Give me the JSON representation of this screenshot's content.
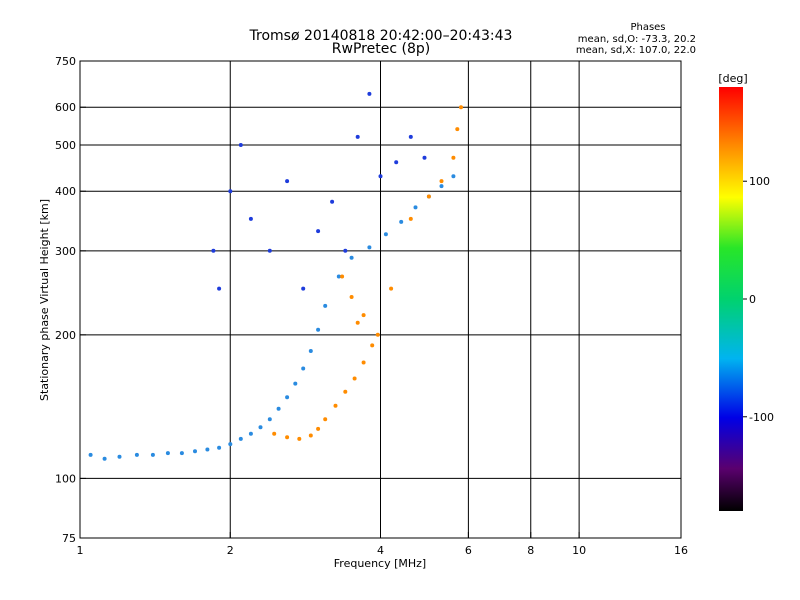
{
  "chart_data": {
    "type": "scatter",
    "title": "Tromsø 20140818 20:42:00–20:43:43",
    "subtitle": "RwPretec (8p)",
    "xlabel": "Frequency [MHz]",
    "ylabel": "Stationary phase Virtual Height [km]",
    "x_scale": "log",
    "y_scale": "log",
    "xlim": [
      1,
      16
    ],
    "ylim": [
      75,
      750
    ],
    "x_ticks": [
      1,
      2,
      4,
      6,
      8,
      10,
      16
    ],
    "y_ticks": [
      75,
      100,
      200,
      300,
      400,
      500,
      600,
      750
    ],
    "x_gridlines": [
      2,
      4,
      6,
      8,
      10
    ],
    "y_gridlines": [
      100,
      200,
      300,
      400,
      500,
      600
    ],
    "grid": true,
    "phase_stats": {
      "heading": "Phases",
      "line1": "mean, sd,O: -73.3, 20.2",
      "line2": "mean, sd,X: 107.0, 22.0"
    },
    "colorbar": {
      "label": "[deg]",
      "range": [
        -180,
        180
      ],
      "ticks": [
        100,
        0,
        -100
      ],
      "colormap": "rainbow"
    },
    "series": [
      {
        "mode": "O-trace",
        "phase_deg": -73,
        "color_hint": "#2a8be0",
        "points": [
          [
            1.05,
            112
          ],
          [
            1.12,
            110
          ],
          [
            1.2,
            111
          ],
          [
            1.3,
            112
          ],
          [
            1.4,
            112
          ],
          [
            1.5,
            113
          ],
          [
            1.6,
            113
          ],
          [
            1.7,
            114
          ],
          [
            1.8,
            115
          ],
          [
            1.9,
            116
          ],
          [
            2.0,
            118
          ],
          [
            2.1,
            121
          ],
          [
            2.2,
            124
          ],
          [
            2.3,
            128
          ],
          [
            2.4,
            133
          ],
          [
            2.5,
            140
          ],
          [
            2.6,
            148
          ],
          [
            2.7,
            158
          ],
          [
            2.8,
            170
          ],
          [
            2.9,
            185
          ],
          [
            3.0,
            205
          ],
          [
            3.1,
            230
          ],
          [
            3.3,
            265
          ],
          [
            3.5,
            290
          ],
          [
            3.8,
            305
          ],
          [
            4.1,
            325
          ],
          [
            4.4,
            345
          ],
          [
            4.7,
            370
          ],
          [
            5.0,
            390
          ],
          [
            5.3,
            410
          ],
          [
            5.6,
            430
          ]
        ]
      },
      {
        "mode": "X-trace",
        "phase_deg": 107,
        "color_hint": "#ff8c00",
        "points": [
          [
            2.45,
            124
          ],
          [
            2.6,
            122
          ],
          [
            2.75,
            121
          ],
          [
            2.9,
            123
          ],
          [
            3.0,
            127
          ],
          [
            3.1,
            133
          ],
          [
            3.25,
            142
          ],
          [
            3.4,
            152
          ],
          [
            3.55,
            162
          ],
          [
            3.7,
            175
          ],
          [
            3.85,
            190
          ],
          [
            3.95,
            200
          ],
          [
            3.7,
            220
          ],
          [
            3.5,
            240
          ],
          [
            3.35,
            265
          ],
          [
            3.6,
            212
          ],
          [
            4.2,
            250
          ],
          [
            4.6,
            350
          ],
          [
            5.0,
            390
          ],
          [
            5.3,
            420
          ],
          [
            5.6,
            470
          ],
          [
            5.7,
            540
          ],
          [
            5.8,
            600
          ]
        ]
      },
      {
        "mode": "spread-F",
        "phase_deg": -100,
        "color_hint": "#1e3cdc",
        "points": [
          [
            1.85,
            300
          ],
          [
            1.9,
            250
          ],
          [
            2.0,
            400
          ],
          [
            2.1,
            500
          ],
          [
            2.2,
            350
          ],
          [
            2.4,
            300
          ],
          [
            2.6,
            420
          ],
          [
            2.8,
            250
          ],
          [
            3.0,
            330
          ],
          [
            3.2,
            380
          ],
          [
            3.4,
            300
          ],
          [
            3.6,
            520
          ],
          [
            3.8,
            640
          ],
          [
            4.0,
            430
          ],
          [
            4.3,
            460
          ],
          [
            4.6,
            520
          ],
          [
            4.9,
            470
          ]
        ]
      }
    ]
  }
}
